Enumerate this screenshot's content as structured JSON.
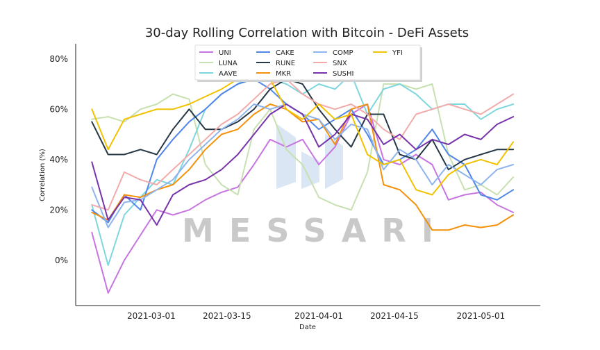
{
  "chart_data": {
    "type": "line",
    "title": "30-day Rolling Correlation with Bitcoin - DeFi Assets",
    "xlabel": "Date",
    "ylabel": "Correlation (%)",
    "ylim": [
      -18,
      86
    ],
    "yticks": [
      0,
      20,
      40,
      60,
      80
    ],
    "ytick_labels": [
      "0%",
      "20%",
      "40%",
      "60%",
      "80%"
    ],
    "xlim": [
      "2021-02-15",
      "2021-05-12"
    ],
    "xticks": [
      "2021-03-01",
      "2021-03-15",
      "2021-04-01",
      "2021-04-15",
      "2021-05-01"
    ],
    "grid": false,
    "legend_position": "top-center",
    "x": [
      "2021-02-18",
      "2021-02-21",
      "2021-02-24",
      "2021-02-27",
      "2021-03-02",
      "2021-03-05",
      "2021-03-08",
      "2021-03-11",
      "2021-03-14",
      "2021-03-17",
      "2021-03-20",
      "2021-03-23",
      "2021-03-26",
      "2021-03-29",
      "2021-04-01",
      "2021-04-04",
      "2021-04-07",
      "2021-04-10",
      "2021-04-13",
      "2021-04-16",
      "2021-04-19",
      "2021-04-22",
      "2021-04-25",
      "2021-04-28",
      "2021-05-01",
      "2021-05-04",
      "2021-05-07"
    ],
    "series": [
      {
        "name": "UNI",
        "color": "#c774e0",
        "values": [
          11,
          -13,
          0,
          10,
          20,
          18,
          20,
          24,
          27,
          29,
          38,
          48,
          45,
          48,
          38,
          45,
          58,
          62,
          40,
          38,
          42,
          38,
          24,
          26,
          27,
          22,
          19
        ]
      },
      {
        "name": "LUNA",
        "color": "#c7e0b0",
        "values": [
          56,
          57,
          55,
          60,
          62,
          66,
          64,
          38,
          30,
          26,
          52,
          60,
          44,
          38,
          25,
          22,
          20,
          35,
          70,
          70,
          68,
          70,
          42,
          28,
          30,
          26,
          33
        ]
      },
      {
        "name": "AAVE",
        "color": "#7dd6de",
        "values": [
          22,
          -2,
          18,
          25,
          32,
          30,
          44,
          60,
          66,
          70,
          74,
          72,
          70,
          66,
          70,
          68,
          74,
          58,
          68,
          70,
          66,
          60,
          62,
          62,
          56,
          60,
          62
        ]
      },
      {
        "name": "CAKE",
        "color": "#4f86e8",
        "values": [
          20,
          15,
          26,
          20,
          40,
          48,
          55,
          60,
          66,
          70,
          72,
          68,
          62,
          58,
          52,
          56,
          60,
          50,
          38,
          40,
          44,
          52,
          42,
          38,
          26,
          24,
          28
        ]
      },
      {
        "name": "RUNE",
        "color": "#263846",
        "values": [
          55,
          42,
          42,
          44,
          42,
          52,
          60,
          52,
          52,
          55,
          60,
          68,
          72,
          70,
          60,
          52,
          45,
          58,
          58,
          42,
          40,
          48,
          36,
          40,
          42,
          44,
          44
        ]
      },
      {
        "name": "MKR",
        "color": "#f5900a",
        "values": [
          19,
          16,
          26,
          25,
          28,
          30,
          36,
          44,
          50,
          52,
          58,
          62,
          60,
          55,
          56,
          46,
          60,
          62,
          30,
          28,
          22,
          12,
          12,
          14,
          13,
          14,
          18
        ]
      },
      {
        "name": "COMP",
        "color": "#8db4ef",
        "values": [
          29,
          13,
          23,
          24,
          28,
          32,
          40,
          46,
          52,
          56,
          62,
          60,
          62,
          58,
          56,
          48,
          54,
          52,
          36,
          44,
          40,
          30,
          38,
          34,
          30,
          36,
          38
        ]
      },
      {
        "name": "SNX",
        "color": "#f2aaaa",
        "values": [
          22,
          20,
          35,
          32,
          30,
          36,
          42,
          48,
          54,
          58,
          64,
          70,
          72,
          66,
          62,
          60,
          62,
          58,
          52,
          48,
          58,
          60,
          62,
          60,
          58,
          62,
          66
        ]
      },
      {
        "name": "SUSHI",
        "color": "#7733aa",
        "values": [
          39,
          16,
          25,
          24,
          14,
          26,
          30,
          32,
          36,
          42,
          50,
          58,
          62,
          58,
          45,
          50,
          58,
          56,
          46,
          50,
          44,
          48,
          46,
          50,
          48,
          54,
          57
        ]
      },
      {
        "name": "YFI",
        "color": "#f2c200",
        "values": [
          60,
          44,
          56,
          58,
          60,
          60,
          62,
          65,
          68,
          72,
          74,
          72,
          60,
          56,
          62,
          56,
          58,
          42,
          38,
          40,
          28,
          26,
          34,
          38,
          40,
          38,
          47
        ]
      }
    ],
    "annotations": [
      "MESSARI"
    ]
  }
}
